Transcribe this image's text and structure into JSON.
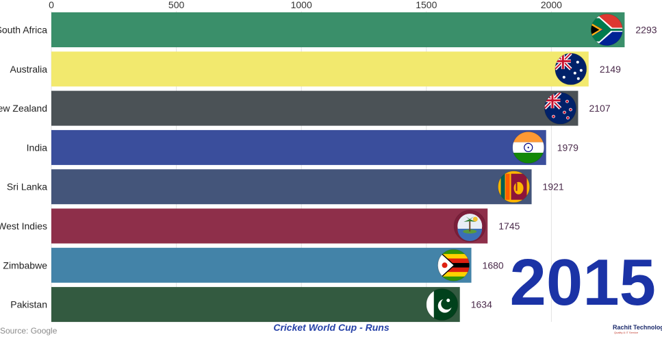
{
  "chart_data": {
    "type": "bar",
    "orientation": "horizontal",
    "title": "Cricket World Cup - Runs",
    "year": "2015",
    "source": "Source: Google",
    "brand": "Rachit Technology",
    "brand_sub": "Quality & IT Service",
    "xlim": [
      0,
      2400
    ],
    "xticks": [
      0,
      500,
      1000,
      1500,
      2000
    ],
    "grid": true,
    "categories": [
      "South Africa",
      "Australia",
      "New Zealand",
      "India",
      "Sri Lanka",
      "West Indies",
      "Zimbabwe",
      "Pakistan"
    ],
    "values": [
      2293,
      2149,
      2107,
      1979,
      1921,
      1745,
      1680,
      1634
    ],
    "colors": [
      "#3a8f6a",
      "#f2e96e",
      "#4b5256",
      "#3a4e9c",
      "#44557a",
      "#8e2f4a",
      "#4383a8",
      "#335a40"
    ],
    "flag_icons": [
      "south-africa-flag-icon",
      "australia-flag-icon",
      "new-zealand-flag-icon",
      "india-flag-icon",
      "sri-lanka-flag-icon",
      "west-indies-flag-icon",
      "zimbabwe-flag-icon",
      "pakistan-flag-icon"
    ]
  }
}
